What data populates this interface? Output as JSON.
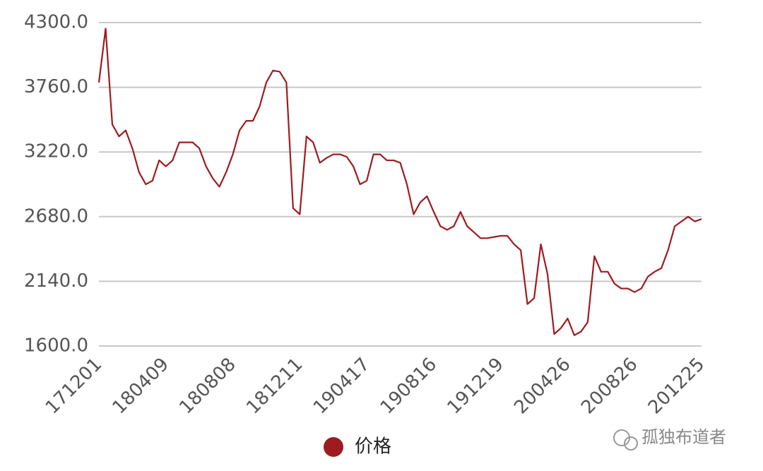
{
  "chart_data": {
    "type": "line",
    "categories": [
      "171201",
      null,
      null,
      null,
      null,
      null,
      null,
      null,
      null,
      null,
      "180409",
      null,
      null,
      null,
      null,
      null,
      null,
      null,
      null,
      null,
      "180808",
      null,
      null,
      null,
      null,
      null,
      null,
      null,
      null,
      null,
      "181211",
      null,
      null,
      null,
      null,
      null,
      null,
      null,
      null,
      null,
      "190417",
      null,
      null,
      null,
      null,
      null,
      null,
      null,
      null,
      null,
      "190816",
      null,
      null,
      null,
      null,
      null,
      null,
      null,
      null,
      null,
      "191219",
      null,
      null,
      null,
      null,
      null,
      null,
      null,
      null,
      null,
      "200426",
      null,
      null,
      null,
      null,
      null,
      null,
      null,
      null,
      null,
      "200826",
      null,
      null,
      null,
      null,
      null,
      null,
      null,
      null,
      null,
      "201225"
    ],
    "series": [
      {
        "name": "价格",
        "color": "#9e1b20",
        "values": [
          3800,
          4250,
          3450,
          3350,
          3400,
          3250,
          3050,
          2950,
          2980,
          3150,
          3100,
          3150,
          3300,
          3300,
          3300,
          3250,
          3100,
          3000,
          2930,
          3050,
          3200,
          3400,
          3480,
          3480,
          3600,
          3800,
          3900,
          3890,
          3800,
          2750,
          2700,
          3350,
          3300,
          3130,
          3170,
          3200,
          3200,
          3180,
          3100,
          2950,
          2980,
          3200,
          3200,
          3150,
          3150,
          3130,
          2950,
          2700,
          2800,
          2850,
          2720,
          2600,
          2570,
          2600,
          2720,
          2600,
          2550,
          2500,
          2500,
          2510,
          2520,
          2520,
          2450,
          2400,
          1950,
          2000,
          2450,
          2200,
          1700,
          1750,
          1830,
          1690,
          1720,
          1800,
          2350,
          2220,
          2220,
          2120,
          2080,
          2080,
          2050,
          2080,
          2180,
          2220,
          2250,
          2400,
          2600,
          2640,
          2680,
          2640,
          2660
        ]
      }
    ],
    "ylim": [
      1600,
      4300
    ],
    "yticks": [
      {
        "value": 1600,
        "label": "1600.0"
      },
      {
        "value": 2140,
        "label": "2140.0"
      },
      {
        "value": 2680,
        "label": "2680.0"
      },
      {
        "value": 3220,
        "label": "3220.0"
      },
      {
        "value": 3760,
        "label": "3760.0"
      },
      {
        "value": 4300,
        "label": "4300.0"
      }
    ],
    "grid": true,
    "legend": "bottom"
  },
  "watermark": "孤独布道者"
}
